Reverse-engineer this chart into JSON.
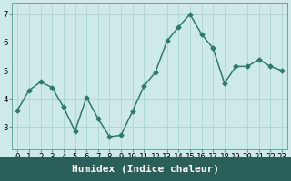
{
  "x": [
    0,
    1,
    2,
    3,
    4,
    5,
    6,
    7,
    8,
    9,
    10,
    11,
    12,
    13,
    14,
    15,
    16,
    17,
    18,
    19,
    20,
    21,
    22,
    23
  ],
  "y": [
    3.6,
    4.3,
    4.6,
    4.4,
    3.7,
    2.85,
    4.05,
    3.3,
    2.65,
    2.7,
    3.55,
    4.45,
    4.95,
    6.05,
    6.55,
    7.0,
    6.3,
    5.8,
    4.55,
    5.15,
    5.15,
    5.4,
    5.15,
    5.0
  ],
  "line_color": "#2d7b6e",
  "marker": "D",
  "marker_size": 2.5,
  "bg_color": "#ceeae8",
  "grid_color": "#aed4d0",
  "xlabel": "Humidex (Indice chaleur)",
  "ylim": [
    2.2,
    7.4
  ],
  "xlim": [
    -0.5,
    23.5
  ],
  "yticks": [
    3,
    4,
    5,
    6,
    7
  ],
  "xticks": [
    0,
    1,
    2,
    3,
    4,
    5,
    6,
    7,
    8,
    9,
    10,
    11,
    12,
    13,
    14,
    15,
    16,
    17,
    18,
    19,
    20,
    21,
    22,
    23
  ],
  "tick_label_fontsize": 6.5,
  "xlabel_fontsize": 8,
  "linewidth": 1.1,
  "bottom_bar_color": "#2a5f5a",
  "spine_color": "#5a9a90"
}
